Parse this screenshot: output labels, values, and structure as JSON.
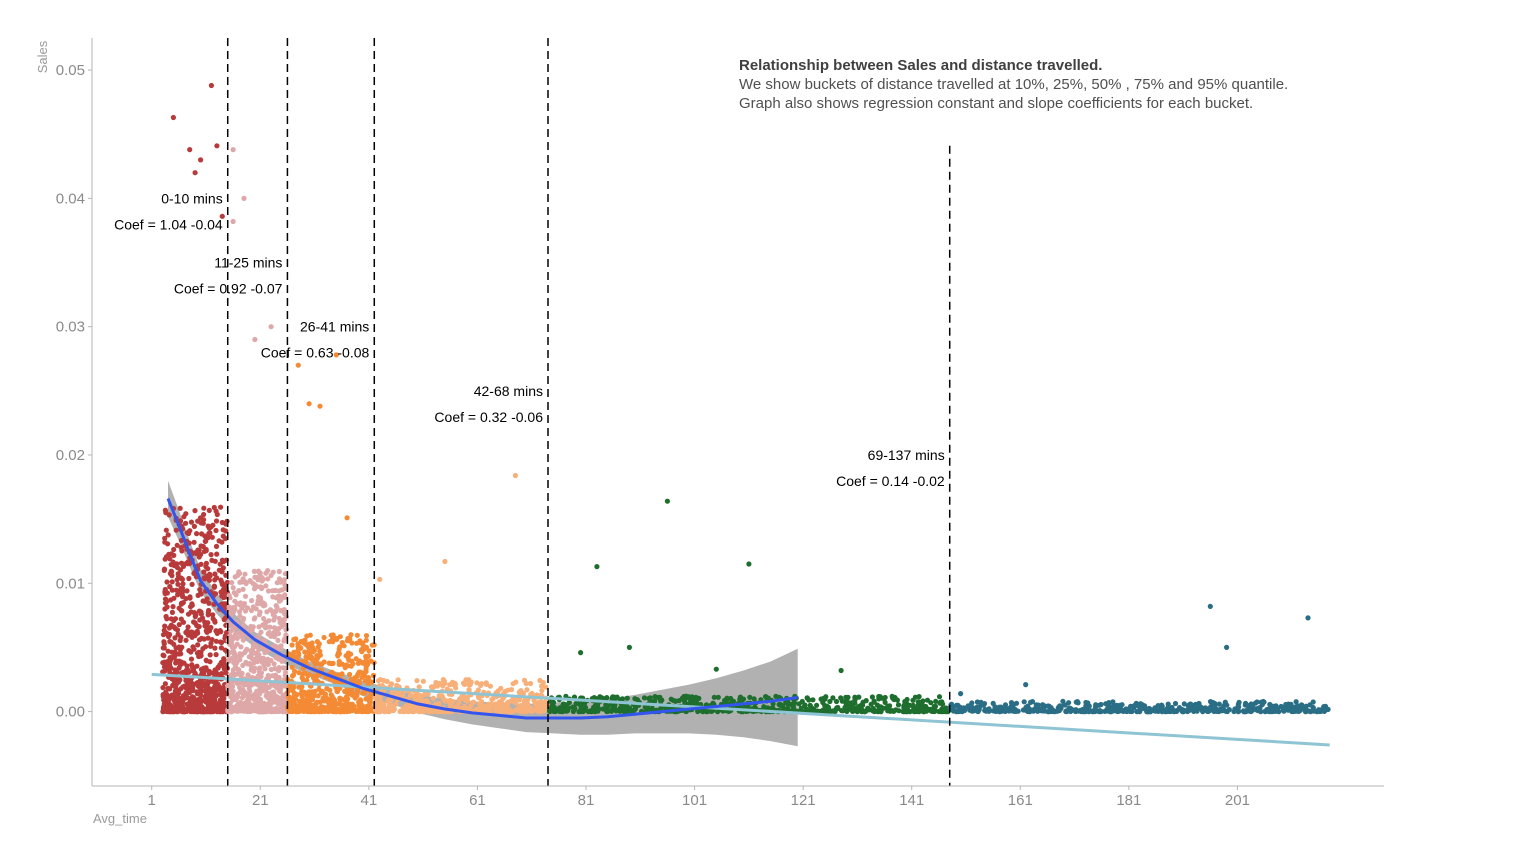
{
  "chart_data": {
    "type": "scatter",
    "title": "Relationship between Sales and distance travelled.",
    "subtitle_lines": [
      "We show buckets of distance travelled at 10%, 25%, 50% , 75% and 95% quantile.",
      "Graph also shows regression constant and slope coefficients for each bucket."
    ],
    "xlabel": "Avg_time",
    "ylabel": "Sales",
    "xlim": [
      -10,
      228
    ],
    "ylim": [
      -0.0058,
      0.0525
    ],
    "x_ticks": [
      1,
      21,
      41,
      61,
      81,
      101,
      121,
      141,
      161,
      181,
      201
    ],
    "y_ticks": [
      0.0,
      0.01,
      0.02,
      0.03,
      0.04,
      0.05
    ],
    "y_tick_labels": [
      "0.00",
      "0.01",
      "0.02",
      "0.03",
      "0.04",
      "0.05"
    ],
    "grid": false,
    "cutoffs": [
      15,
      26,
      42,
      74,
      148
    ],
    "buckets": [
      {
        "label": "0-10 mins",
        "coef": "Coef = 1.04 -0.04",
        "x_range": [
          3,
          15
        ],
        "color": "#b83a3a",
        "n": 900,
        "y_max": 0.016
      },
      {
        "label": "11-25 mins",
        "coef": "Coef = 0.92 -0.07",
        "x_range": [
          15,
          26
        ],
        "color": "#dea8a8",
        "n": 650,
        "y_max": 0.011
      },
      {
        "label": "26-41 mins",
        "coef": "Coef = 0.63 -0.08",
        "x_range": [
          26,
          42
        ],
        "color": "#f58a35",
        "n": 550,
        "y_max": 0.006
      },
      {
        "label": "42-68 mins",
        "coef": "Coef = 0.32 -0.06",
        "x_range": [
          42,
          74
        ],
        "color": "#f8b07a",
        "n": 450,
        "y_max": 0.0025
      },
      {
        "label": "69-137 mins",
        "coef": "Coef = 0.14 -0.02",
        "x_range": [
          74,
          148
        ],
        "color": "#1e6e2e",
        "n": 650,
        "y_max": 0.0012
      },
      {
        "label": "",
        "coef": "",
        "x_range": [
          148,
          218
        ],
        "color": "#2a6e86",
        "n": 500,
        "y_max": 0.0008
      }
    ],
    "outliers": [
      [
        12,
        0.0488
      ],
      [
        5,
        0.0463
      ],
      [
        13,
        0.0441
      ],
      [
        8,
        0.0438
      ],
      [
        16,
        0.0438
      ],
      [
        10,
        0.043
      ],
      [
        9,
        0.042
      ],
      [
        18,
        0.04
      ],
      [
        14,
        0.0386
      ],
      [
        16,
        0.0382
      ],
      [
        20,
        0.029
      ],
      [
        23,
        0.03
      ],
      [
        28,
        0.027
      ],
      [
        35,
        0.0278
      ],
      [
        30,
        0.024
      ],
      [
        32,
        0.0238
      ],
      [
        37,
        0.0151
      ],
      [
        43,
        0.0103
      ],
      [
        55,
        0.0117
      ],
      [
        68,
        0.0184
      ],
      [
        96,
        0.0164
      ],
      [
        83,
        0.0113
      ],
      [
        111,
        0.0115
      ],
      [
        89,
        0.005
      ],
      [
        80,
        0.0046
      ],
      [
        105,
        0.0033
      ],
      [
        128,
        0.0032
      ],
      [
        196,
        0.0082
      ],
      [
        214,
        0.0073
      ],
      [
        199,
        0.005
      ],
      [
        162,
        0.0021
      ],
      [
        150,
        0.0014
      ]
    ],
    "smooth_loess": {
      "color": "#3355ee",
      "x": [
        4,
        6,
        8,
        10,
        13,
        16,
        20,
        25,
        30,
        35,
        40,
        45,
        50,
        55,
        60,
        65,
        70,
        75,
        80,
        85,
        90,
        95,
        100,
        105,
        110,
        115,
        120
      ],
      "y": [
        0.0166,
        0.0145,
        0.0123,
        0.0102,
        0.0084,
        0.007,
        0.0056,
        0.0044,
        0.0034,
        0.0026,
        0.0018,
        0.0012,
        0.0006,
        0.0002,
        -0.0001,
        -0.0003,
        -0.0005,
        -0.0005,
        -0.0005,
        -0.0004,
        -0.0002,
        0.0,
        0.0002,
        0.0004,
        0.0006,
        0.0008,
        0.0011
      ],
      "band_halfwidth": [
        0.0014,
        0.0012,
        0.001,
        0.0009,
        0.0008,
        0.0007,
        0.0006,
        0.0006,
        0.0005,
        0.0005,
        0.0006,
        0.0006,
        0.0007,
        0.0008,
        0.0009,
        0.001,
        0.0011,
        0.0012,
        0.0013,
        0.0014,
        0.0015,
        0.0017,
        0.0019,
        0.0022,
        0.0026,
        0.0031,
        0.0038
      ]
    },
    "smooth_linear": {
      "color": "#8ec4d4",
      "x": [
        1,
        218
      ],
      "y": [
        0.0029,
        -0.0026
      ]
    }
  }
}
